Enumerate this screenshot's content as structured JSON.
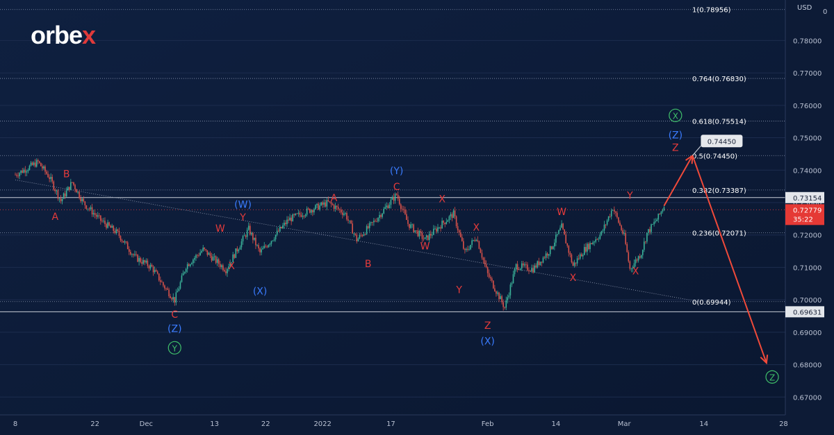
{
  "brand": {
    "part1": "orbe",
    "part2": "x"
  },
  "chart_data": {
    "type": "line",
    "currency": "USD",
    "y_axis_ticks": [
      0.67,
      0.68,
      0.69,
      0.7,
      0.71,
      0.72,
      0.73,
      0.74,
      0.75,
      0.76,
      0.77,
      0.78
    ],
    "y_tick_labels": [
      "0.67000",
      "0.68000",
      "0.69000",
      "0.70000",
      "0.71000",
      "0.72000",
      "0.73000",
      "0.74000",
      "0.75000",
      "0.76000",
      "0.77000",
      "0.78000"
    ],
    "ylim": [
      0.6645,
      0.7925
    ],
    "x_tick_labels": [
      {
        "x": 0,
        "label": "8"
      },
      {
        "x": 14,
        "label": "22"
      },
      {
        "x": 23,
        "label": "Dec"
      },
      {
        "x": 35,
        "label": "13"
      },
      {
        "x": 44,
        "label": "22"
      },
      {
        "x": 54,
        "label": "2022"
      },
      {
        "x": 66,
        "label": "17"
      },
      {
        "x": 83,
        "label": "Feb"
      },
      {
        "x": 95,
        "label": "14"
      },
      {
        "x": 107,
        "label": "Mar"
      },
      {
        "x": 121,
        "label": "14"
      },
      {
        "x": 135,
        "label": "28"
      }
    ],
    "price_series": [
      [
        0,
        0.7386
      ],
      [
        2,
        0.7405
      ],
      [
        4,
        0.7425
      ],
      [
        6,
        0.7378
      ],
      [
        8,
        0.7305
      ],
      [
        10,
        0.7363
      ],
      [
        12,
        0.7299
      ],
      [
        15,
        0.7245
      ],
      [
        18,
        0.7205
      ],
      [
        21,
        0.7132
      ],
      [
        24,
        0.71
      ],
      [
        26,
        0.7045
      ],
      [
        28,
        0.6999
      ],
      [
        30,
        0.7105
      ],
      [
        33,
        0.7155
      ],
      [
        37,
        0.7093
      ],
      [
        41,
        0.7218
      ],
      [
        43,
        0.7145
      ],
      [
        45,
        0.7185
      ],
      [
        48,
        0.7247
      ],
      [
        52,
        0.7279
      ],
      [
        55,
        0.73
      ],
      [
        58,
        0.7265
      ],
      [
        60,
        0.7185
      ],
      [
        63,
        0.724
      ],
      [
        67,
        0.7325
      ],
      [
        69,
        0.7235
      ],
      [
        72,
        0.7185
      ],
      [
        75,
        0.7235
      ],
      [
        77,
        0.7265
      ],
      [
        79,
        0.7145
      ],
      [
        81,
        0.7195
      ],
      [
        83,
        0.7079
      ],
      [
        86,
        0.6976
      ],
      [
        88,
        0.7105
      ],
      [
        91,
        0.7095
      ],
      [
        94,
        0.7155
      ],
      [
        96,
        0.7225
      ],
      [
        98,
        0.7105
      ],
      [
        100,
        0.7155
      ],
      [
        103,
        0.7205
      ],
      [
        105,
        0.7285
      ],
      [
        107,
        0.7195
      ],
      [
        108,
        0.7095
      ],
      [
        110,
        0.7145
      ],
      [
        111,
        0.7205
      ],
      [
        113,
        0.7255
      ],
      [
        114,
        0.729
      ]
    ],
    "fib_levels": [
      {
        "label": "1(0.78956)",
        "value": 0.78956
      },
      {
        "label": "0.764(0.76830)",
        "value": 0.7683
      },
      {
        "label": "0.618(0.75514)",
        "value": 0.75514
      },
      {
        "label": "0.5(0.74450)",
        "value": 0.7445
      },
      {
        "label": "0.382(0.73387)",
        "value": 0.73387
      },
      {
        "label": "0.236(0.72071)",
        "value": 0.72071
      },
      {
        "label": "0(0.69944)",
        "value": 0.69944
      }
    ],
    "horizontal_lines": [
      {
        "label": "0.73154",
        "value": 0.73154
      },
      {
        "label": "0.69631",
        "value": 0.69631
      }
    ],
    "current_price": {
      "label": "0.72779",
      "timer": "35:22",
      "value": 0.72779
    },
    "target_label": "0.74450",
    "trendline": {
      "from": [
        0,
        0.737
      ],
      "to": [
        120,
        0.6995
      ]
    },
    "projection": [
      [
        114,
        0.729
      ],
      [
        119,
        0.7445
      ],
      [
        132,
        0.6805
      ]
    ],
    "wave_labels": [
      {
        "t": "A",
        "x": 7,
        "y": 0.7257,
        "c": "red"
      },
      {
        "t": "B",
        "x": 9,
        "y": 0.7389,
        "c": "red"
      },
      {
        "t": "C",
        "x": 28,
        "y": 0.6955,
        "c": "red"
      },
      {
        "t": "(Z)",
        "x": 28,
        "y": 0.6912,
        "c": "blue"
      },
      {
        "t": "Y",
        "x": 28,
        "y": 0.6852,
        "c": "green"
      },
      {
        "t": "W",
        "x": 36,
        "y": 0.7221,
        "c": "red"
      },
      {
        "t": "(W)",
        "x": 40,
        "y": 0.7295,
        "c": "blue"
      },
      {
        "t": "Y",
        "x": 40,
        "y": 0.7255,
        "c": "red"
      },
      {
        "t": "X",
        "x": 38,
        "y": 0.7105,
        "c": "red"
      },
      {
        "t": "(X)",
        "x": 43,
        "y": 0.7027,
        "c": "blue"
      },
      {
        "t": "A",
        "x": 56,
        "y": 0.7315,
        "c": "red"
      },
      {
        "t": "B",
        "x": 62,
        "y": 0.7112,
        "c": "red"
      },
      {
        "t": "(Y)",
        "x": 67,
        "y": 0.7398,
        "c": "blue"
      },
      {
        "t": "C",
        "x": 67,
        "y": 0.7349,
        "c": "red"
      },
      {
        "t": "X",
        "x": 75,
        "y": 0.7312,
        "c": "red"
      },
      {
        "t": "W",
        "x": 72,
        "y": 0.7166,
        "c": "red"
      },
      {
        "t": "X",
        "x": 81,
        "y": 0.7224,
        "c": "red"
      },
      {
        "t": "Y",
        "x": 78,
        "y": 0.7031,
        "c": "red"
      },
      {
        "t": "Z",
        "x": 83,
        "y": 0.6921,
        "c": "red"
      },
      {
        "t": "(X)",
        "x": 83,
        "y": 0.6873,
        "c": "blue"
      },
      {
        "t": "W",
        "x": 96,
        "y": 0.7272,
        "c": "red"
      },
      {
        "t": "X",
        "x": 98,
        "y": 0.7069,
        "c": "red"
      },
      {
        "t": "Y",
        "x": 108,
        "y": 0.7322,
        "c": "red"
      },
      {
        "t": "X",
        "x": 109,
        "y": 0.7089,
        "c": "red"
      },
      {
        "t": "X",
        "x": 116,
        "y": 0.7569,
        "c": "green"
      },
      {
        "t": "(Z)",
        "x": 116,
        "y": 0.7509,
        "c": "blue"
      },
      {
        "t": "Z",
        "x": 116,
        "y": 0.747,
        "c": "red"
      },
      {
        "t": "Z",
        "x": 133,
        "y": 0.6762,
        "c": "green"
      }
    ],
    "colors": {
      "background": "#0d1b36",
      "red": "#e53b3b",
      "blue": "#3a7bfd",
      "green": "#3fbf6a",
      "grid": "#1c2c4e"
    }
  }
}
